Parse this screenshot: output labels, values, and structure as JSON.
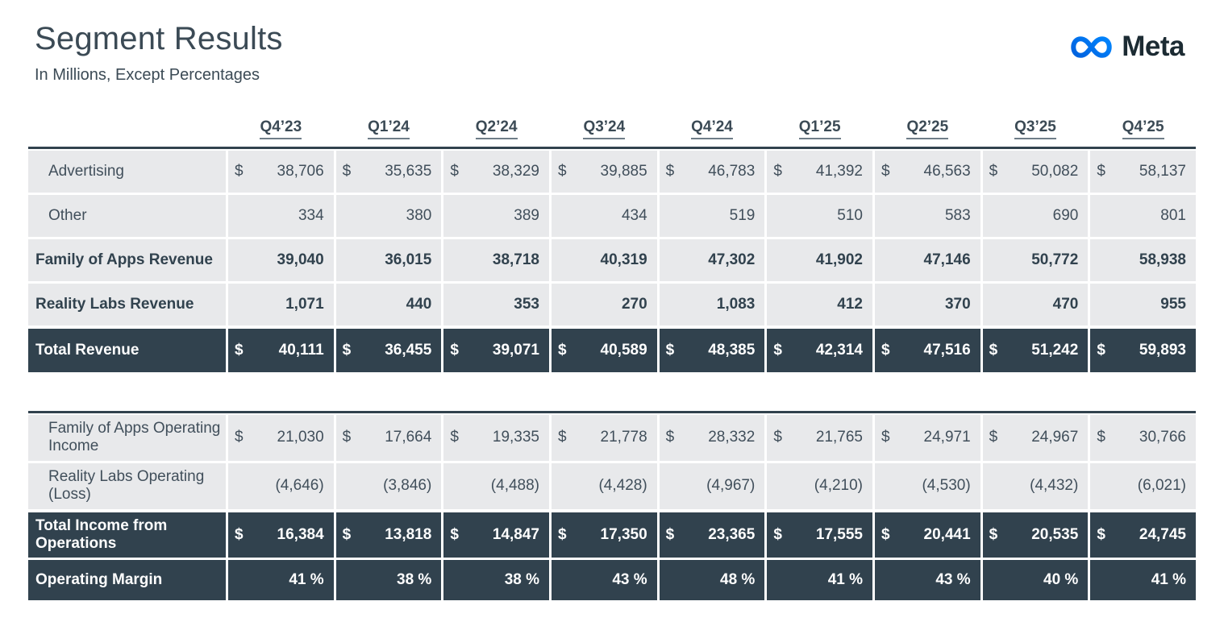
{
  "header": {
    "title": "Segment Results",
    "subtitle": "In Millions, Except Percentages",
    "brand": "Meta"
  },
  "colors": {
    "dark_row": "#31424E",
    "light_row": "#E8E9EB",
    "text": "#3B4A55",
    "wordmark": "#1C2B33",
    "logo_gradient_start": "#0064E0",
    "logo_gradient_end": "#0082FB"
  },
  "currency_symbol": "$",
  "quarters": [
    "Q4’23",
    "Q1’24",
    "Q2’24",
    "Q3’24",
    "Q4’24",
    "Q1’25",
    "Q2’25",
    "Q3’25",
    "Q4’25"
  ],
  "tables": [
    {
      "name": "revenue",
      "rows": [
        {
          "label": "Advertising",
          "style": "light",
          "bold": false,
          "indent": true,
          "dollar": true,
          "values": [
            "38,706",
            "35,635",
            "38,329",
            "39,885",
            "46,783",
            "41,392",
            "46,563",
            "50,082",
            "58,137"
          ]
        },
        {
          "label": "Other",
          "style": "light",
          "bold": false,
          "indent": true,
          "dollar": false,
          "values": [
            "334",
            "380",
            "389",
            "434",
            "519",
            "510",
            "583",
            "690",
            "801"
          ]
        },
        {
          "label": "Family of Apps Revenue",
          "style": "light",
          "bold": true,
          "indent": false,
          "dollar": false,
          "values": [
            "39,040",
            "36,015",
            "38,718",
            "40,319",
            "47,302",
            "41,902",
            "47,146",
            "50,772",
            "58,938"
          ]
        },
        {
          "label": "Reality Labs Revenue",
          "style": "light",
          "bold": true,
          "indent": false,
          "dollar": false,
          "values": [
            "1,071",
            "440",
            "353",
            "270",
            "1,083",
            "412",
            "370",
            "470",
            "955"
          ]
        },
        {
          "label": "Total Revenue",
          "style": "dark",
          "bold": true,
          "indent": false,
          "dollar": true,
          "values": [
            "40,111",
            "36,455",
            "39,071",
            "40,589",
            "48,385",
            "42,314",
            "47,516",
            "51,242",
            "59,893"
          ]
        }
      ]
    },
    {
      "name": "operating-income",
      "rows": [
        {
          "label": "Family of Apps Operating Income",
          "style": "light",
          "bold": false,
          "indent": true,
          "dollar": true,
          "values": [
            "21,030",
            "17,664",
            "19,335",
            "21,778",
            "28,332",
            "21,765",
            "24,971",
            "24,967",
            "30,766"
          ]
        },
        {
          "label": "Reality Labs Operating (Loss)",
          "style": "light",
          "bold": false,
          "indent": true,
          "dollar": false,
          "values": [
            "(4,646)",
            "(3,846)",
            "(4,488)",
            "(4,428)",
            "(4,967)",
            "(4,210)",
            "(4,530)",
            "(4,432)",
            "(6,021)"
          ]
        },
        {
          "label": "Total Income from Operations",
          "style": "dark",
          "bold": true,
          "indent": false,
          "dollar": true,
          "values": [
            "16,384",
            "13,818",
            "14,847",
            "17,350",
            "23,365",
            "17,555",
            "20,441",
            "20,535",
            "24,745"
          ]
        },
        {
          "label": "Operating Margin",
          "style": "dark",
          "bold": true,
          "indent": false,
          "dollar": false,
          "values": [
            "41 %",
            "38 %",
            "38 %",
            "43 %",
            "48 %",
            "41 %",
            "43 %",
            "40 %",
            "41 %"
          ]
        }
      ]
    }
  ]
}
